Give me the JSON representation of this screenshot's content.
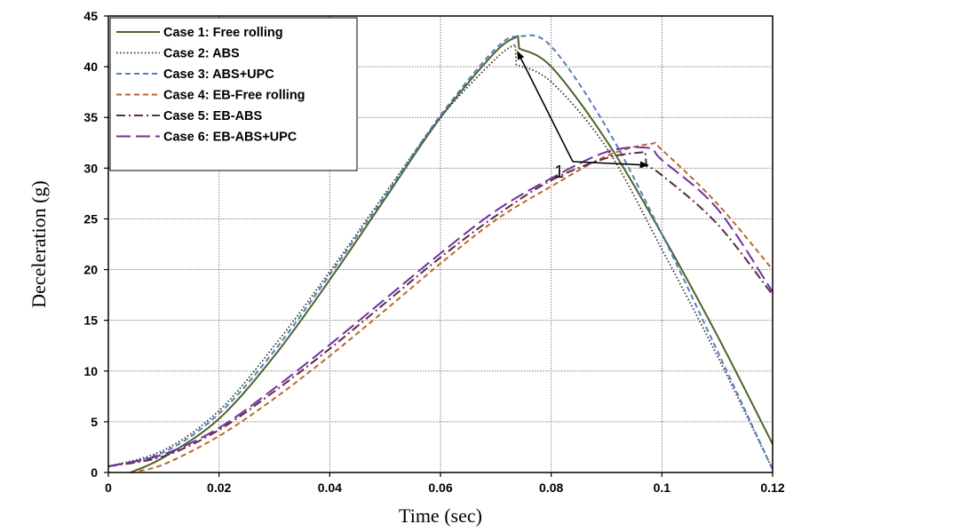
{
  "chart_data": {
    "type": "line",
    "title": "",
    "xlabel": "Time (sec)",
    "ylabel": "Deceleration (g)",
    "xlim": [
      0,
      0.12
    ],
    "ylim": [
      0,
      45
    ],
    "x_ticks": [
      0,
      0.02,
      0.04,
      0.06,
      0.08,
      0.1,
      0.12
    ],
    "x_tick_labels": [
      "0",
      "0.02",
      "0.04",
      "0.06",
      "0.08",
      "0.1",
      "0.12"
    ],
    "y_ticks": [
      0,
      5,
      10,
      15,
      20,
      25,
      30,
      35,
      40,
      45
    ],
    "y_tick_labels": [
      "0",
      "5",
      "10",
      "15",
      "20",
      "25",
      "30",
      "35",
      "40",
      "45"
    ],
    "grid": true,
    "legend_position": "top-left",
    "series": [
      {
        "name": "Case 1: Free rolling",
        "color": "#4f6228",
        "dash": "solid",
        "x": [
          0.004,
          0.01,
          0.02,
          0.03,
          0.04,
          0.05,
          0.06,
          0.07,
          0.074,
          0.0742,
          0.08,
          0.09,
          0.1,
          0.11,
          0.12
        ],
        "y": [
          0,
          1.5,
          5.3,
          11.5,
          19.0,
          27.0,
          35.0,
          41.5,
          43.0,
          41.8,
          40.0,
          32.7,
          23.5,
          13.5,
          2.8
        ]
      },
      {
        "name": "Case 2: ABS",
        "color": "#333333",
        "dash": "dotted",
        "x": [
          0,
          0.01,
          0.02,
          0.03,
          0.04,
          0.05,
          0.06,
          0.07,
          0.0735,
          0.0737,
          0.08,
          0.09,
          0.1,
          0.11,
          0.12
        ],
        "y": [
          0.6,
          2.2,
          6.1,
          12.5,
          19.8,
          27.5,
          35.0,
          40.8,
          42.2,
          40.2,
          38.5,
          32.0,
          22.0,
          11.5,
          0.3
        ]
      },
      {
        "name": "Case 3: ABS+UPC",
        "color": "#4f81bd",
        "dash": "dashed",
        "x": [
          0,
          0.01,
          0.02,
          0.03,
          0.04,
          0.05,
          0.06,
          0.07,
          0.0745,
          0.08,
          0.09,
          0.1,
          0.11,
          0.12
        ],
        "y": [
          0.6,
          2.0,
          5.8,
          12.0,
          19.5,
          27.3,
          35.2,
          41.8,
          43.0,
          42.0,
          34.0,
          23.5,
          12.0,
          0.3
        ]
      },
      {
        "name": "Case 4: EB-Free rolling",
        "color": "#c0652a",
        "dash": "dashed",
        "x": [
          0.004,
          0.01,
          0.02,
          0.03,
          0.04,
          0.05,
          0.06,
          0.07,
          0.08,
          0.09,
          0.098,
          0.1,
          0.11,
          0.12
        ],
        "y": [
          0,
          0.8,
          3.6,
          7.3,
          11.5,
          16.0,
          20.6,
          24.9,
          28.2,
          31.2,
          32.4,
          31.8,
          26.5,
          20.0
        ]
      },
      {
        "name": "Case 5: EB-ABS",
        "color": "#5a2d40",
        "dash": "dashdot",
        "x": [
          0,
          0.01,
          0.02,
          0.03,
          0.04,
          0.05,
          0.06,
          0.07,
          0.08,
          0.09,
          0.097,
          0.0972,
          0.1,
          0.11,
          0.12
        ],
        "y": [
          0.6,
          1.6,
          4.2,
          8.0,
          12.2,
          16.7,
          21.2,
          25.3,
          28.8,
          31.0,
          31.6,
          30.2,
          29.3,
          24.5,
          17.5
        ]
      },
      {
        "name": "Case 6: EB-ABS+UPC",
        "color": "#7030a0",
        "dash": "longdash",
        "x": [
          0,
          0.01,
          0.02,
          0.03,
          0.04,
          0.05,
          0.06,
          0.07,
          0.08,
          0.09,
          0.0975,
          0.1,
          0.11,
          0.12
        ],
        "y": [
          0.6,
          1.8,
          4.4,
          8.3,
          12.6,
          17.1,
          21.6,
          25.8,
          29.0,
          31.6,
          32.0,
          30.8,
          26.0,
          17.8
        ]
      }
    ],
    "annotations": [
      {
        "text": "1",
        "arrow_targets": [
          [
            0.0739,
            41.5
          ],
          [
            0.0975,
            30.3
          ]
        ]
      }
    ]
  }
}
